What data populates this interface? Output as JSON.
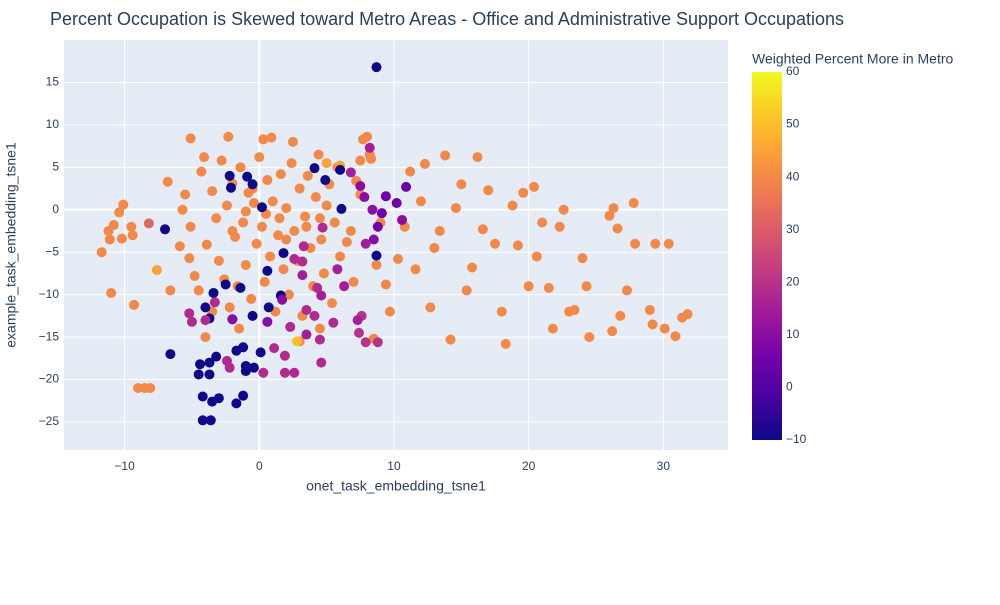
{
  "chart_data": {
    "type": "scatter",
    "title": "Percent Occupation is Skewed toward Metro Areas - Office and Administrative Support Occupations",
    "xlabel": "onet_task_embedding_tsne1",
    "ylabel": "example_task_embedding_tsne1",
    "xlim": [
      -14.5,
      34.8
    ],
    "ylim": [
      -28.3,
      20
    ],
    "x_ticks": [
      -10,
      0,
      10,
      20,
      30
    ],
    "x_tick_labels": [
      "−10",
      "0",
      "10",
      "20",
      "30"
    ],
    "y_ticks": [
      -25,
      -20,
      -15,
      -10,
      -5,
      0,
      5,
      10,
      15
    ],
    "y_tick_labels": [
      "−25",
      "−20",
      "−15",
      "−10",
      "−5",
      "0",
      "5",
      "10",
      "15"
    ],
    "grid": true,
    "colorbar": {
      "title": "Weighted Percent More in Metro",
      "range": [
        -10,
        60
      ],
      "ticks": [
        -10,
        0,
        10,
        20,
        30,
        40,
        50,
        60
      ],
      "tick_labels": [
        "−10",
        "0",
        "10",
        "20",
        "30",
        "40",
        "50",
        "60"
      ],
      "colorscale": [
        "#0d0887",
        "#46039f",
        "#7201a8",
        "#9c179e",
        "#bd3786",
        "#d8576b",
        "#ed7953",
        "#fb9f3a",
        "#fdca26",
        "#f0f921"
      ]
    },
    "points": [
      [
        8.7,
        16.8,
        -10
      ],
      [
        -11.7,
        -5.0,
        40
      ],
      [
        -11.2,
        -2.5,
        40
      ],
      [
        -10.8,
        -1.8,
        40
      ],
      [
        -11.1,
        -3.5,
        40
      ],
      [
        -10.4,
        -0.3,
        40
      ],
      [
        -10.2,
        -3.4,
        40
      ],
      [
        -10.1,
        0.6,
        40
      ],
      [
        -9.5,
        -2.0,
        40
      ],
      [
        -9.4,
        -3.0,
        40
      ],
      [
        -8.2,
        -1.6,
        32
      ],
      [
        -11.0,
        -9.8,
        40
      ],
      [
        -9.3,
        -11.2,
        40
      ],
      [
        -7.6,
        -7.1,
        45
      ],
      [
        -9.0,
        -21.0,
        40
      ],
      [
        -8.5,
        -21.0,
        40
      ],
      [
        -8.1,
        -21.0,
        40
      ],
      [
        -6.8,
        3.3,
        40
      ],
      [
        -6.6,
        -9.5,
        40
      ],
      [
        -5.9,
        -4.3,
        40
      ],
      [
        -5.7,
        0.0,
        40
      ],
      [
        -5.5,
        1.8,
        40
      ],
      [
        -5.1,
        -2.0,
        40
      ],
      [
        -5.2,
        -5.7,
        40
      ],
      [
        -4.8,
        -7.8,
        40
      ],
      [
        -4.5,
        -9.5,
        40
      ],
      [
        -4.3,
        4.5,
        40
      ],
      [
        -4.1,
        6.2,
        40
      ],
      [
        -3.9,
        -4.1,
        40
      ],
      [
        -3.5,
        2.2,
        40
      ],
      [
        -3.2,
        -1.0,
        40
      ],
      [
        -3.0,
        -6.0,
        40
      ],
      [
        -2.8,
        5.8,
        40
      ],
      [
        -2.6,
        -8.2,
        40
      ],
      [
        -2.4,
        0.5,
        40
      ],
      [
        -2.2,
        -11.5,
        40
      ],
      [
        -2.0,
        3.1,
        40
      ],
      [
        -1.8,
        -3.2,
        40
      ],
      [
        -1.6,
        -9.0,
        40
      ],
      [
        -1.4,
        5.0,
        40
      ],
      [
        -1.2,
        -1.5,
        40
      ],
      [
        -1.0,
        -6.5,
        40
      ],
      [
        -0.8,
        2.0,
        40
      ],
      [
        -0.6,
        -10.5,
        40
      ],
      [
        -0.4,
        0.8,
        40
      ],
      [
        -0.2,
        -4.0,
        40
      ],
      [
        0.0,
        6.2,
        40
      ],
      [
        0.2,
        -2.0,
        40
      ],
      [
        0.4,
        -8.5,
        40
      ],
      [
        0.6,
        3.5,
        40
      ],
      [
        0.8,
        -5.5,
        40
      ],
      [
        1.0,
        1.0,
        40
      ],
      [
        1.2,
        -12.0,
        40
      ],
      [
        1.4,
        -3.0,
        40
      ],
      [
        1.6,
        4.2,
        40
      ],
      [
        1.8,
        -7.0,
        40
      ],
      [
        2.0,
        0.2,
        40
      ],
      [
        2.2,
        -10.0,
        40
      ],
      [
        2.4,
        5.5,
        40
      ],
      [
        2.6,
        -2.5,
        40
      ],
      [
        2.8,
        -6.0,
        40
      ],
      [
        3.0,
        2.5,
        40
      ],
      [
        3.2,
        -12.5,
        40
      ],
      [
        3.4,
        -0.8,
        40
      ],
      [
        3.6,
        4.0,
        40
      ],
      [
        3.8,
        -4.5,
        40
      ],
      [
        4.0,
        -9.0,
        40
      ],
      [
        4.2,
        1.5,
        40
      ],
      [
        4.4,
        6.5,
        40
      ],
      [
        4.6,
        -3.5,
        40
      ],
      [
        4.8,
        -7.5,
        40
      ],
      [
        5.0,
        0.5,
        40
      ],
      [
        5.2,
        3.0,
        40
      ],
      [
        5.4,
        -11.0,
        40
      ],
      [
        5.6,
        -1.5,
        40
      ],
      [
        5.8,
        5.0,
        40
      ],
      [
        6.0,
        -5.5,
        40
      ],
      [
        6.5,
        -3.8,
        40
      ],
      [
        7.0,
        -8.5,
        40
      ],
      [
        7.5,
        1.8,
        40
      ],
      [
        7.7,
        8.3,
        40
      ],
      [
        8.0,
        8.6,
        40
      ],
      [
        8.3,
        6.0,
        40
      ],
      [
        8.7,
        -6.5,
        40
      ],
      [
        9.0,
        -1.5,
        40
      ],
      [
        9.4,
        -8.8,
        40
      ],
      [
        9.7,
        -12.0,
        40
      ],
      [
        10.3,
        -5.8,
        40
      ],
      [
        10.8,
        -2.0,
        40
      ],
      [
        11.2,
        4.5,
        40
      ],
      [
        11.6,
        -7.0,
        40
      ],
      [
        12.0,
        1.0,
        40
      ],
      [
        12.3,
        5.4,
        40
      ],
      [
        12.7,
        -11.5,
        40
      ],
      [
        13.0,
        -4.5,
        40
      ],
      [
        13.4,
        -2.5,
        40
      ],
      [
        13.8,
        6.4,
        40
      ],
      [
        14.2,
        -15.3,
        40
      ],
      [
        14.6,
        0.2,
        40
      ],
      [
        15.0,
        3.0,
        40
      ],
      [
        15.4,
        -9.5,
        40
      ],
      [
        15.8,
        -6.8,
        40
      ],
      [
        16.2,
        6.2,
        40
      ],
      [
        16.6,
        -2.3,
        40
      ],
      [
        17.0,
        2.3,
        40
      ],
      [
        17.5,
        -4.0,
        40
      ],
      [
        18.0,
        -12.0,
        40
      ],
      [
        18.3,
        -15.8,
        40
      ],
      [
        18.8,
        0.5,
        40
      ],
      [
        19.2,
        -4.2,
        40
      ],
      [
        19.6,
        2.0,
        40
      ],
      [
        20.0,
        -9.0,
        40
      ],
      [
        20.4,
        2.7,
        40
      ],
      [
        20.6,
        -5.5,
        40
      ],
      [
        21.0,
        -1.5,
        40
      ],
      [
        21.5,
        -9.2,
        40
      ],
      [
        21.8,
        -14.0,
        40
      ],
      [
        22.3,
        -2.0,
        40
      ],
      [
        22.6,
        0.0,
        40
      ],
      [
        23.0,
        -12.0,
        40
      ],
      [
        23.4,
        -11.8,
        40
      ],
      [
        24.0,
        -5.7,
        40
      ],
      [
        24.3,
        -9.0,
        40
      ],
      [
        24.5,
        -15.0,
        40
      ],
      [
        26.0,
        -0.7,
        40
      ],
      [
        26.3,
        0.2,
        40
      ],
      [
        26.6,
        -2.2,
        40
      ],
      [
        26.2,
        -14.3,
        40
      ],
      [
        26.8,
        -12.5,
        40
      ],
      [
        27.3,
        -9.5,
        40
      ],
      [
        27.8,
        0.8,
        40
      ],
      [
        27.9,
        -4.0,
        40
      ],
      [
        29.0,
        -11.8,
        40
      ],
      [
        29.2,
        -13.5,
        40
      ],
      [
        29.4,
        -4.0,
        40
      ],
      [
        30.1,
        -14.0,
        40
      ],
      [
        30.4,
        -4.0,
        40
      ],
      [
        30.9,
        -14.9,
        40
      ],
      [
        31.4,
        -12.7,
        40
      ],
      [
        31.8,
        -12.3,
        40
      ],
      [
        -5.1,
        8.4,
        40
      ],
      [
        -2.3,
        8.6,
        40
      ],
      [
        0.3,
        8.3,
        40
      ],
      [
        0.9,
        8.5,
        40
      ],
      [
        2.5,
        8.0,
        40
      ],
      [
        7.5,
        5.8,
        40
      ],
      [
        8.2,
        6.5,
        40
      ],
      [
        -4.0,
        -15.0,
        40
      ],
      [
        -1.5,
        -14.0,
        40
      ],
      [
        3.0,
        -15.5,
        40
      ],
      [
        4.5,
        -14.0,
        40
      ],
      [
        8.5,
        -15.2,
        40
      ],
      [
        -3.5,
        -12.0,
        40
      ],
      [
        1.5,
        -1.0,
        40
      ],
      [
        0.5,
        -0.5,
        40
      ],
      [
        -1.0,
        -0.2,
        40
      ],
      [
        -2.0,
        -2.5,
        40
      ],
      [
        2.0,
        -3.5,
        40
      ],
      [
        3.5,
        -2.0,
        40
      ],
      [
        4.5,
        -1.0,
        40
      ],
      [
        -0.5,
        2.5,
        40
      ],
      [
        5.0,
        5.5,
        45
      ],
      [
        6.0,
        5.2,
        45
      ],
      [
        6.8,
        -2.5,
        40
      ],
      [
        7.2,
        3.4,
        40
      ],
      [
        2.8,
        -15.5,
        50
      ],
      [
        -7.0,
        -2.3,
        -10
      ],
      [
        -6.6,
        -17.0,
        -10
      ],
      [
        -4.4,
        -18.2,
        -10
      ],
      [
        -4.5,
        -19.4,
        -10
      ],
      [
        -3.7,
        -19.4,
        -10
      ],
      [
        -3.7,
        -18.0,
        -10
      ],
      [
        -3.2,
        -17.3,
        -10
      ],
      [
        -4.2,
        -22.0,
        -10
      ],
      [
        -3.5,
        -22.6,
        -10
      ],
      [
        -3.0,
        -22.2,
        -10
      ],
      [
        -4.2,
        -24.8,
        -10
      ],
      [
        -3.6,
        -24.8,
        -10
      ],
      [
        -1.7,
        -22.8,
        -10
      ],
      [
        -1.2,
        -21.9,
        -10
      ],
      [
        -1.0,
        -19.0,
        -10
      ],
      [
        -1.0,
        -18.4,
        -10
      ],
      [
        -0.4,
        -18.6,
        -10
      ],
      [
        0.1,
        -16.8,
        -10
      ],
      [
        -1.7,
        -16.6,
        -10
      ],
      [
        -1.2,
        -16.2,
        -10
      ],
      [
        -2.0,
        -12.9,
        -10
      ],
      [
        -3.7,
        -12.8,
        -10
      ],
      [
        -4.0,
        -11.5,
        -10
      ],
      [
        -3.4,
        -9.8,
        -10
      ],
      [
        -2.5,
        -8.8,
        -10
      ],
      [
        -1.4,
        -9.2,
        -10
      ],
      [
        -0.5,
        -12.5,
        -10
      ],
      [
        0.7,
        -11.5,
        -10
      ],
      [
        1.6,
        -10.1,
        -10
      ],
      [
        0.6,
        -7.2,
        -10
      ],
      [
        1.8,
        -5.1,
        -10
      ],
      [
        -2.2,
        4.0,
        -10
      ],
      [
        -2.1,
        2.6,
        -10
      ],
      [
        -0.9,
        3.9,
        -10
      ],
      [
        -0.5,
        3.0,
        -10
      ],
      [
        0.2,
        0.3,
        -10
      ],
      [
        4.1,
        4.9,
        -10
      ],
      [
        4.9,
        3.5,
        -10
      ],
      [
        6.0,
        4.7,
        -10
      ],
      [
        6.1,
        0.1,
        -10
      ],
      [
        8.7,
        -5.4,
        -10
      ],
      [
        8.8,
        -2.0,
        5
      ],
      [
        9.1,
        -0.4,
        5
      ],
      [
        9.4,
        1.6,
        5
      ],
      [
        10.2,
        0.8,
        5
      ],
      [
        10.6,
        -1.2,
        10
      ],
      [
        10.9,
        2.7,
        5
      ],
      [
        7.5,
        2.8,
        10
      ],
      [
        7.8,
        1.5,
        10
      ],
      [
        8.2,
        7.3,
        15
      ],
      [
        8.4,
        0.0,
        10
      ],
      [
        8.5,
        -3.5,
        10
      ],
      [
        7.9,
        -4.0,
        15
      ],
      [
        6.8,
        4.4,
        15
      ],
      [
        7.6,
        -12.5,
        20
      ],
      [
        7.4,
        -14.5,
        20
      ],
      [
        7.9,
        -15.6,
        20
      ],
      [
        8.8,
        -15.6,
        20
      ],
      [
        7.3,
        -13.0,
        15
      ],
      [
        5.8,
        -7.0,
        15
      ],
      [
        6.3,
        -9.0,
        15
      ],
      [
        3.5,
        -11.8,
        18
      ],
      [
        4.1,
        -12.5,
        18
      ],
      [
        4.5,
        -15.3,
        18
      ],
      [
        4.6,
        -18.0,
        18
      ],
      [
        1.9,
        -17.2,
        18
      ],
      [
        1.9,
        -19.2,
        18
      ],
      [
        2.6,
        -19.2,
        18
      ],
      [
        1.1,
        -16.3,
        18
      ],
      [
        2.3,
        -13.8,
        18
      ],
      [
        -3.3,
        -10.9,
        18
      ],
      [
        -5.2,
        -12.2,
        18
      ],
      [
        -5.0,
        -13.2,
        18
      ],
      [
        -4.0,
        -13.0,
        18
      ],
      [
        -2.4,
        -17.8,
        18
      ],
      [
        -2.2,
        -18.6,
        18
      ],
      [
        0.3,
        -19.2,
        18
      ],
      [
        5.5,
        -13.3,
        18
      ],
      [
        4.3,
        -9.2,
        18
      ],
      [
        3.2,
        -6.1,
        18
      ],
      [
        2.6,
        -5.8,
        18
      ],
      [
        4.7,
        -2.1,
        18
      ],
      [
        3.3,
        -4.3,
        18
      ],
      [
        3.2,
        -7.7,
        15
      ],
      [
        4.6,
        -10.1,
        15
      ],
      [
        3.5,
        -14.7,
        15
      ],
      [
        1.7,
        -10.6,
        10
      ],
      [
        0.6,
        -13.2,
        10
      ],
      [
        -2.0,
        -12.9,
        10
      ]
    ]
  }
}
